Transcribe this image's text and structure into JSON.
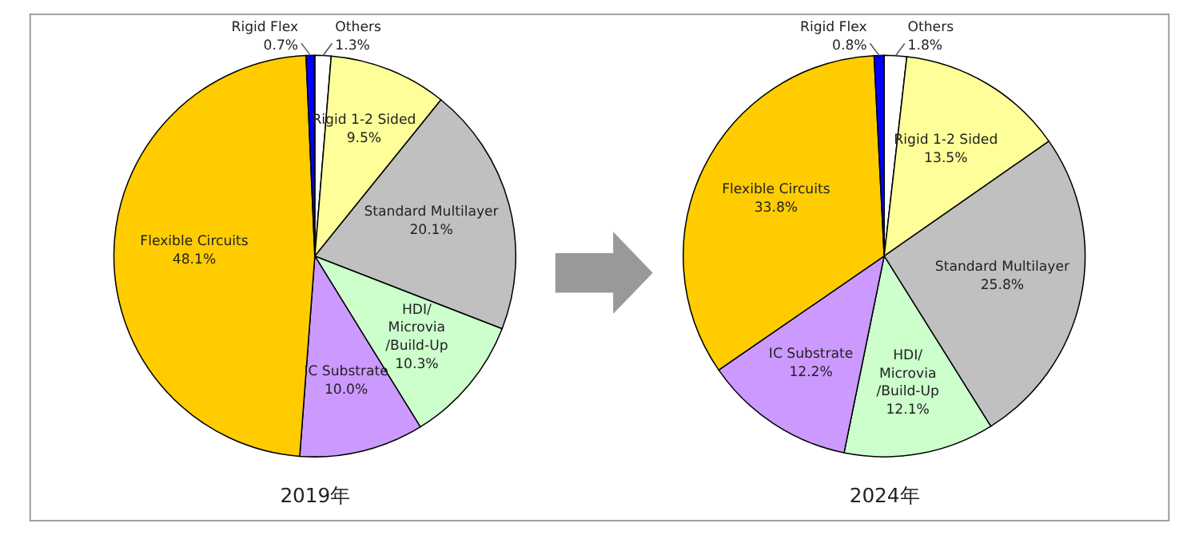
{
  "chart_data": [
    {
      "type": "pie",
      "title": "2019年",
      "categories": [
        "Others",
        "Rigid 1-2 Sided",
        "Standard Multilayer",
        "HDI/\nMicrovia\n/Build-Up",
        "IC Substrate",
        "Flexible Circuits",
        "Rigid Flex"
      ],
      "values": [
        1.3,
        9.5,
        20.1,
        10.3,
        10.0,
        48.1,
        0.7
      ],
      "colors": [
        "#ffffff",
        "#ffff99",
        "#c0c0c0",
        "#ccffcc",
        "#cc99ff",
        "#ffcc00",
        "#0000ff"
      ],
      "value_labels": [
        "1.3%",
        "9.5%",
        "20.1%",
        "10.3%",
        "10.0%",
        "48.1%",
        "0.7%"
      ]
    },
    {
      "type": "pie",
      "title": "2024年",
      "categories": [
        "Others",
        "Rigid 1-2 Sided",
        "Standard Multilayer",
        "HDI/\nMicrovia\n/Build-Up",
        "IC Substrate",
        "Flexible Circuits",
        "Rigid Flex"
      ],
      "values": [
        1.8,
        13.5,
        25.8,
        12.1,
        12.2,
        33.8,
        0.8
      ],
      "colors": [
        "#ffffff",
        "#ffff99",
        "#c0c0c0",
        "#ccffcc",
        "#cc99ff",
        "#ffcc00",
        "#0000ff"
      ],
      "value_labels": [
        "1.8%",
        "13.5%",
        "25.8%",
        "12.1%",
        "12.2%",
        "33.8%",
        "0.8%"
      ]
    }
  ]
}
